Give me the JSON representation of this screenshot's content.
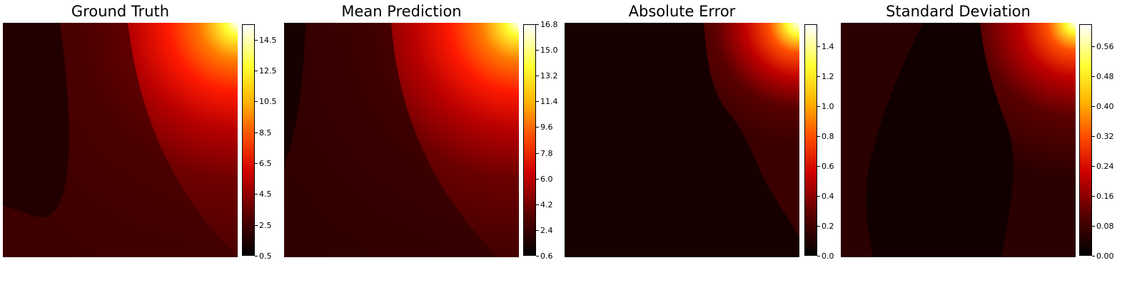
{
  "chart_data": [
    {
      "type": "heatmap",
      "title": "Ground Truth",
      "colormap": "hot",
      "colorbar": {
        "min": 0.5,
        "max": 15.5,
        "ticks": [
          "0.5",
          "2.5",
          "4.5",
          "6.5",
          "8.5",
          "10.5",
          "12.5",
          "14.5"
        ],
        "tick_values": [
          0.5,
          2.5,
          4.5,
          6.5,
          8.5,
          10.5,
          12.5,
          14.5
        ]
      }
    },
    {
      "type": "heatmap",
      "title": "Mean Prediction",
      "colormap": "hot",
      "colorbar": {
        "min": 0.6,
        "max": 16.8,
        "ticks": [
          "0.6",
          "2.4",
          "4.2",
          "6.0",
          "7.8",
          "9.6",
          "11.4",
          "13.2",
          "15.0",
          "16.8"
        ],
        "tick_values": [
          0.6,
          2.4,
          4.2,
          6.0,
          7.8,
          9.6,
          11.4,
          13.2,
          15.0,
          16.8
        ]
      }
    },
    {
      "type": "heatmap",
      "title": "Absolute Error",
      "colormap": "hot",
      "colorbar": {
        "min": 0.0,
        "max": 1.55,
        "ticks": [
          "0.0",
          "0.2",
          "0.4",
          "0.6",
          "0.8",
          "1.0",
          "1.2",
          "1.4"
        ],
        "tick_values": [
          0.0,
          0.2,
          0.4,
          0.6,
          0.8,
          1.0,
          1.2,
          1.4
        ]
      }
    },
    {
      "type": "heatmap",
      "title": "Standard Deviation",
      "colormap": "hot",
      "colorbar": {
        "min": 0.0,
        "max": 0.62,
        "ticks": [
          "0.00",
          "0.08",
          "0.16",
          "0.24",
          "0.32",
          "0.40",
          "0.48",
          "0.56"
        ],
        "tick_values": [
          0.0,
          0.08,
          0.16,
          0.24,
          0.32,
          0.4,
          0.48,
          0.56
        ]
      }
    }
  ]
}
